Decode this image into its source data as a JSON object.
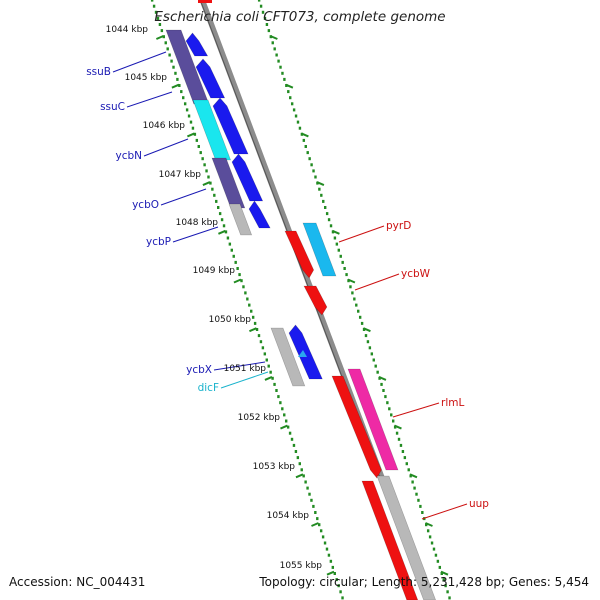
{
  "title": "Escherichia coli CFT073, complete genome",
  "footer": {
    "accession": "Accession: NC_004431",
    "topology": "Topology: circular; Length: 5,231,428 bp; Genes: 5,454"
  },
  "kbp_labels": [
    "1044 kbp",
    "1045 kbp",
    "1046 kbp",
    "1047 kbp",
    "1048 kbp",
    "1049 kbp",
    "1050 kbp",
    "1051 kbp",
    "1052 kbp",
    "1053 kbp",
    "1054 kbp",
    "1055 kbp"
  ],
  "left_gene_labels": [
    "ssuB",
    "ssuC",
    "ycbN",
    "ycbO",
    "ycbP",
    "ycbX",
    "dicF"
  ],
  "right_gene_labels": [
    "pyrD",
    "ycbW",
    "rlmL",
    "uup"
  ],
  "colors": {
    "blue": "#1a1aee",
    "dark_purple": "#5a4d9b",
    "cyan": "#1ae6ee",
    "grey": "#b8b8b8",
    "red": "#ee1111",
    "magenta": "#ee2aa5",
    "sky_blue": "#1ab8ee",
    "backbone": "#8c8c8c",
    "tick_green": "#228b22",
    "label_blue": "#1a1ab3",
    "label_cyan": "#1ab3cc",
    "label_red": "#cc1111"
  }
}
